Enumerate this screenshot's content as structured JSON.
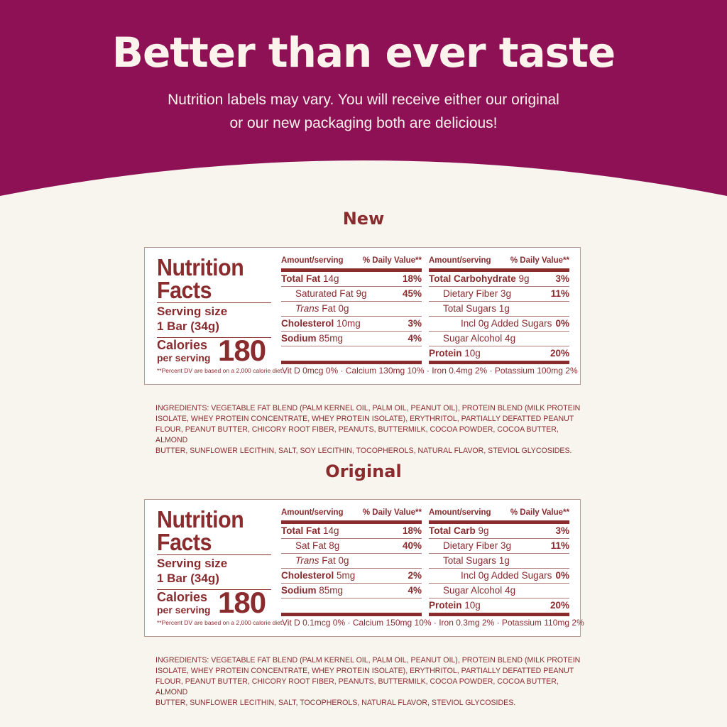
{
  "colors": {
    "banner": "#8e1055",
    "background": "#f8f5ef",
    "text": "#8a2b2e"
  },
  "header": {
    "title": "Better than ever taste",
    "subtitle_line1": "Nutrition labels may vary. You will receive either our original",
    "subtitle_line2": "or our new packaging both are delicious!"
  },
  "labels": [
    {
      "section": "New",
      "title_line1": "Nutrition",
      "title_line2": "Facts",
      "serving_label": "Serving size",
      "serving_value": "1 Bar (34g)",
      "calories_label": "Calories",
      "calories_sub": "per serving",
      "calories": "180",
      "footnote": "**Percent DV are based on a 2,000 calorie diet.",
      "col_header_amount": "Amount/serving",
      "col_header_dv": "% Daily Value**",
      "left_rows": [
        {
          "bold": "Total Fat",
          "italic": "",
          "text": " 14g",
          "dv": "18%",
          "indent": 0
        },
        {
          "bold": "",
          "italic": "",
          "text": "Saturated Fat 9g",
          "dv": "45%",
          "indent": 1
        },
        {
          "bold": "",
          "italic": "Trans",
          "text": " Fat 0g",
          "dv": "",
          "indent": 1
        },
        {
          "bold": "Cholesterol",
          "italic": "",
          "text": " 10mg",
          "dv": "3%",
          "indent": 0
        },
        {
          "bold": "Sodium",
          "italic": "",
          "text": " 85mg",
          "dv": "4%",
          "indent": 0
        },
        {
          "bold": "",
          "italic": "",
          "text": "",
          "dv": "",
          "indent": 0
        }
      ],
      "right_rows": [
        {
          "bold": "Total Carbohydrate",
          "italic": "",
          "text": " 9g",
          "dv": "3%",
          "indent": 0
        },
        {
          "bold": "",
          "italic": "",
          "text": "Dietary Fiber 3g",
          "dv": "11%",
          "indent": 1
        },
        {
          "bold": "",
          "italic": "",
          "text": "Total Sugars 1g",
          "dv": "",
          "indent": 1
        },
        {
          "bold": "",
          "italic": "",
          "text": "Incl 0g Added Sugars",
          "dv": "0%",
          "indent": 2
        },
        {
          "bold": "",
          "italic": "",
          "text": "Sugar Alcohol 4g",
          "dv": "",
          "indent": 1
        },
        {
          "bold": "Protein",
          "italic": "",
          "text": " 10g",
          "dv": "20%",
          "indent": 0
        }
      ],
      "vitamins": "Vit D 0mcg 0% · Calcium 130mg 10% · Iron 0.4mg 2% · Potassium 100mg 2%",
      "ingredients": [
        "INGREDIENTS: VEGETABLE FAT BLEND (PALM KERNEL OIL, PALM OIL, PEANUT OIL), PROTEIN BLEND (MILK PROTEIN",
        "ISOLATE, WHEY PROTEIN CONCENTRATE, WHEY PROTEIN ISOLATE), ERYTHRITOL, PARTIALLY DEFATTED PEANUT",
        "FLOUR, PEANUT BUTTER, CHICORY ROOT FIBER, PEANUTS, BUTTERMILK, COCOA POWDER, COCOA BUTTER, ALMOND",
        "BUTTER, SUNFLOWER LECITHIN, SALT, SOY LECITHIN, TOCOPHEROLS, NATURAL FLAVOR, STEVIOL GLYCOSIDES."
      ]
    },
    {
      "section": "Original",
      "title_line1": "Nutrition",
      "title_line2": "Facts",
      "serving_label": "Serving size",
      "serving_value": "1 Bar (34g)",
      "calories_label": "Calories",
      "calories_sub": "per serving",
      "calories": "180",
      "footnote": "**Percent DV are based on a 2,000 calorie diet.",
      "col_header_amount": "Amount/serving",
      "col_header_dv": "% Daily Value**",
      "left_rows": [
        {
          "bold": "Total Fat",
          "italic": "",
          "text": " 14g",
          "dv": "18%",
          "indent": 0
        },
        {
          "bold": "",
          "italic": "",
          "text": "Sat Fat 8g",
          "dv": "40%",
          "indent": 1
        },
        {
          "bold": "",
          "italic": "Trans",
          "text": " Fat 0g",
          "dv": "",
          "indent": 1
        },
        {
          "bold": "Cholesterol",
          "italic": "",
          "text": " 5mg",
          "dv": "2%",
          "indent": 0
        },
        {
          "bold": "Sodium",
          "italic": "",
          "text": " 85mg",
          "dv": "4%",
          "indent": 0
        },
        {
          "bold": "",
          "italic": "",
          "text": "",
          "dv": "",
          "indent": 0
        }
      ],
      "right_rows": [
        {
          "bold": "Total Carb",
          "italic": "",
          "text": " 9g",
          "dv": "3%",
          "indent": 0
        },
        {
          "bold": "",
          "italic": "",
          "text": "Dietary Fiber 3g",
          "dv": "11%",
          "indent": 1
        },
        {
          "bold": "",
          "italic": "",
          "text": "Total Sugars 1g",
          "dv": "",
          "indent": 1
        },
        {
          "bold": "",
          "italic": "",
          "text": "Incl 0g Added Sugars",
          "dv": "0%",
          "indent": 2
        },
        {
          "bold": "",
          "italic": "",
          "text": "Sugar Alcohol 4g",
          "dv": "",
          "indent": 1
        },
        {
          "bold": "Protein",
          "italic": "",
          "text": " 10g",
          "dv": "20%",
          "indent": 0
        }
      ],
      "vitamins": "Vit D 0.1mcg 0% · Calcium 150mg 10% · Iron 0.3mg 2% · Potassium 110mg 2%",
      "ingredients": [
        "INGREDIENTS: VEGETABLE FAT BLEND (PALM KERNEL OIL, PALM OIL, PEANUT OIL), PROTEIN BLEND (MILK PROTEIN",
        "ISOLATE, WHEY PROTEIN CONCENTRATE, WHEY PROTEIN ISOLATE), ERYTHRITOL, PARTIALLY DEFATTED PEANUT",
        "FLOUR, PEANUT BUTTER, CHICORY ROOT FIBER, PEANUTS, BUTTERMILK, COCOA POWDER, COCOA BUTTER, ALMOND",
        "BUTTER, SUNFLOWER LECITHIN, SALT, TOCOPHEROLS, NATURAL FLAVOR, STEVIOL GLYCOSIDES."
      ]
    }
  ]
}
